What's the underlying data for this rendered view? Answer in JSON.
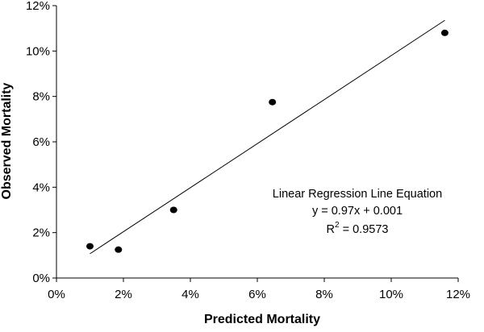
{
  "chart_data": {
    "type": "scatter",
    "xlabel": "Predicted Mortality",
    "ylabel": "Observed Mortality",
    "xlim": [
      0,
      0.12
    ],
    "ylim": [
      0,
      0.12
    ],
    "x_ticks": [
      0,
      0.02,
      0.04,
      0.06,
      0.08,
      0.1,
      0.12
    ],
    "y_ticks": [
      0,
      0.02,
      0.04,
      0.06,
      0.08,
      0.1,
      0.12
    ],
    "x_tick_labels": [
      "0%",
      "2%",
      "4%",
      "6%",
      "8%",
      "10%",
      "12%"
    ],
    "y_tick_labels": [
      "0%",
      "2%",
      "4%",
      "6%",
      "8%",
      "10%",
      "12%"
    ],
    "grid": false,
    "legend": "none",
    "series": [
      {
        "points": [
          {
            "x": 0.01,
            "y": 0.014
          },
          {
            "x": 0.0185,
            "y": 0.0125
          },
          {
            "x": 0.035,
            "y": 0.03
          },
          {
            "x": 0.0645,
            "y": 0.0775
          },
          {
            "x": 0.116,
            "y": 0.108
          }
        ]
      }
    ],
    "trendline": {
      "slope": 0.97,
      "intercept": 0.001,
      "x_range": [
        0.01,
        0.116
      ]
    },
    "annotation": {
      "line1": "Linear Regression Line Equation",
      "line2": "y = 0.97x + 0.001",
      "r2_base": "R",
      "r2_sup": "2",
      "r2_rest": " = 0.9573"
    },
    "colors": {
      "marker": "#000000",
      "line": "#000000",
      "axis": "#000000"
    }
  }
}
